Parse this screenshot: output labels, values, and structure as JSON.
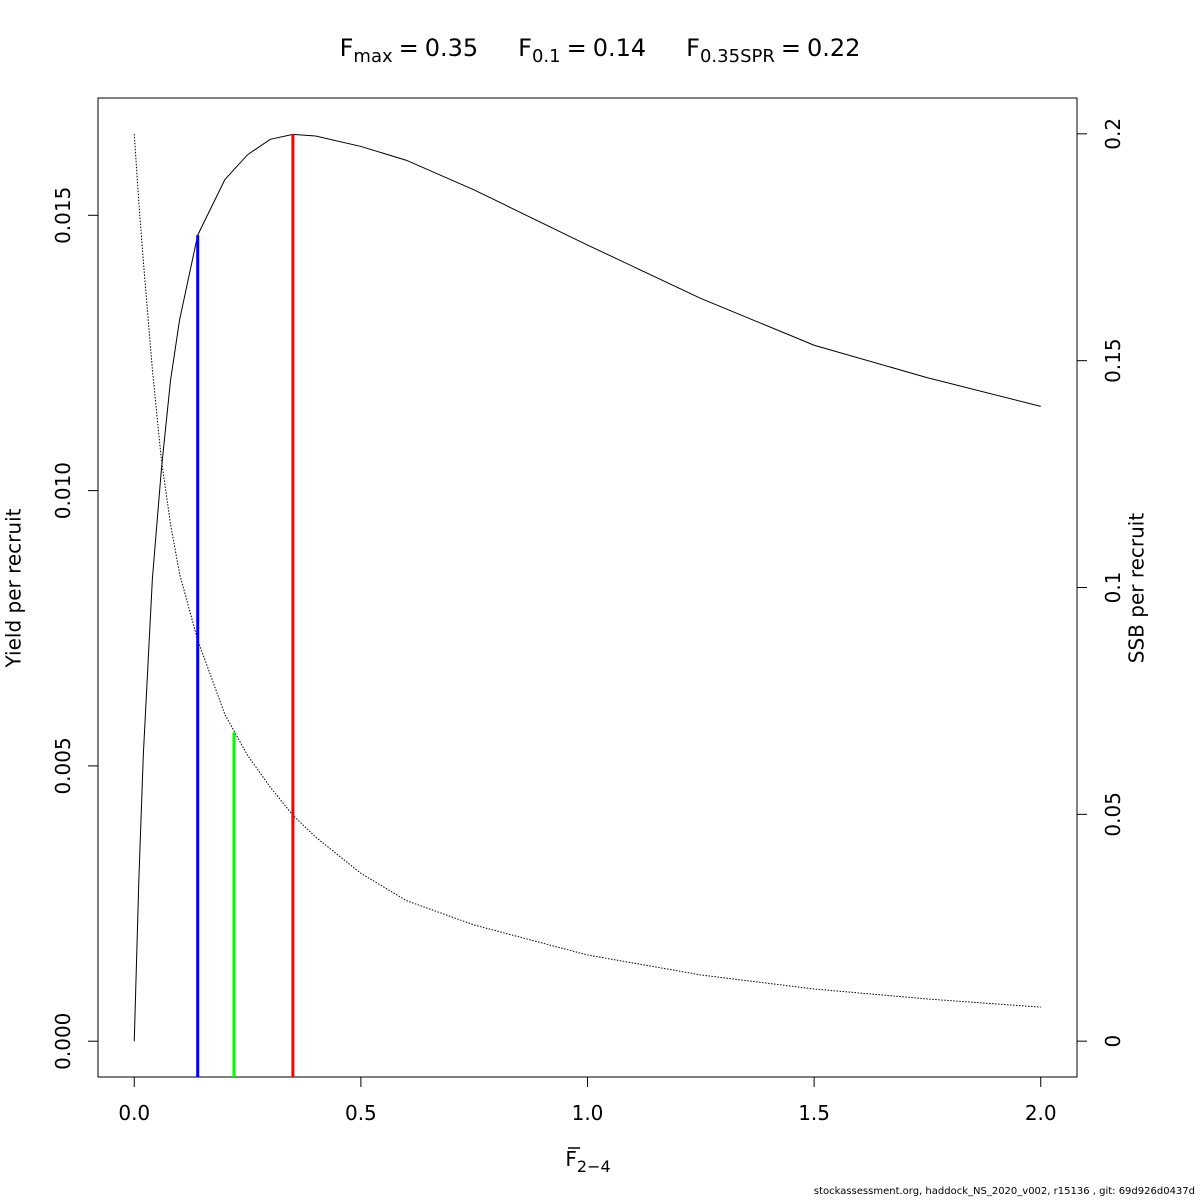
{
  "chart_data": {
    "type": "line",
    "title_parts": [
      {
        "symbol": "F",
        "subscript": "max",
        "sign": "=",
        "value": 0.35
      },
      {
        "symbol": "F",
        "subscript": "0.1",
        "sign": "=",
        "value": 0.14
      },
      {
        "symbol": "F",
        "subscript": "0.35SPR",
        "sign": "=",
        "value": 0.22
      }
    ],
    "xlabel": {
      "symbol": "F",
      "subscript": "2−4"
    },
    "ylabel": "Yield per recruit",
    "y2label": "SSB per recruit",
    "x": [
      0,
      0.01,
      0.02,
      0.04,
      0.06,
      0.08,
      0.1,
      0.14,
      0.2,
      0.25,
      0.3,
      0.35,
      0.4,
      0.5,
      0.6,
      0.75,
      1.0,
      1.25,
      1.5,
      1.75,
      2.0
    ],
    "series": [
      {
        "color": "#000000",
        "dash": false,
        "axis": "y",
        "values": [
          0,
          0.0029,
          0.0052,
          0.0084,
          0.0104,
          0.012,
          0.0131,
          0.01464,
          0.01565,
          0.0161,
          0.01638,
          0.01647,
          0.01644,
          0.01625,
          0.016,
          0.01546,
          0.01446,
          0.01349,
          0.01264,
          0.01205,
          0.01153
        ]
      },
      {
        "color": "#000000",
        "dash": true,
        "axis": "y2",
        "values": [
          0.2,
          0.185,
          0.172,
          0.148,
          0.128,
          0.114,
          0.103,
          0.0884,
          0.072,
          0.063,
          0.056,
          0.0498,
          0.045,
          0.037,
          0.031,
          0.0256,
          0.019,
          0.0146,
          0.0115,
          0.0093,
          0.0075
        ]
      }
    ],
    "reference_lines": [
      {
        "x": 0.35,
        "y": 0.01647,
        "color": "#ff0000"
      },
      {
        "x": 0.14,
        "y": 0.01464,
        "color": "#0000ff"
      },
      {
        "x": 0.22,
        "y": 0.00561,
        "color": "#00ff00"
      }
    ],
    "xlim": [
      -0.08,
      2.08
    ],
    "xticks": [
      {
        "value": 0,
        "label": "0.0"
      },
      0.5,
      {
        "value": 1,
        "label": "1.0"
      },
      1.5,
      {
        "value": 2,
        "label": "2.0"
      }
    ],
    "ylim": [
      -0.00065,
      0.01713
    ],
    "yticks": [
      {
        "value": 0,
        "label": "0.000"
      },
      {
        "value": 0.005,
        "label": "0.005"
      },
      {
        "value": 0.01,
        "label": "0.010"
      },
      {
        "value": 0.015,
        "label": "0.015"
      }
    ],
    "y2lim": [
      -0.0079,
      0.2079
    ],
    "y2ticks": [
      0,
      0.05,
      0.1,
      0.15,
      0.2
    ],
    "footer": "stockassessment.org, haddock_NS_2020_v002, r15136 , git: 69d926d0437d"
  }
}
